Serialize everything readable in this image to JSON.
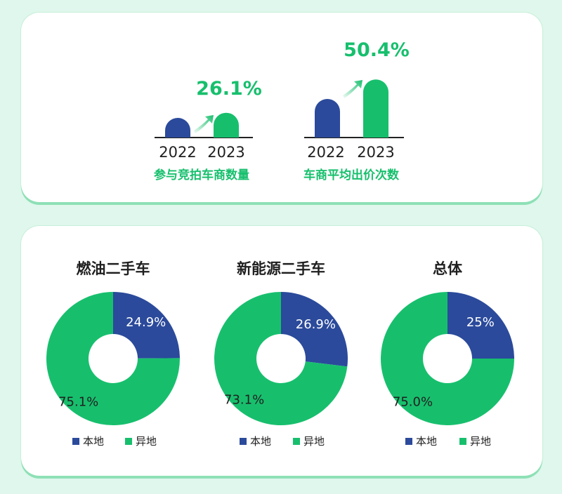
{
  "colors": {
    "local": "#2b4a9b",
    "remote": "#17bf6d",
    "axis": "#222222",
    "text": "#1f1f1f",
    "background": "#dff7ec"
  },
  "top_panel": {
    "left_chart": {
      "pct": "26.1%",
      "label": "参与竞拍车商数量",
      "years": [
        "2022",
        "2023"
      ]
    },
    "right_chart": {
      "pct": "50.4%",
      "label": "车商平均出价次数",
      "years": [
        "2022",
        "2023"
      ]
    }
  },
  "legend": {
    "local": "本地",
    "remote": "异地"
  },
  "chart_data": [
    {
      "type": "bar",
      "title": "参与竞拍车商数量",
      "categories": [
        "2022",
        "2023"
      ],
      "values": [
        1.0,
        1.261
      ],
      "annotation": "26.1%"
    },
    {
      "type": "bar",
      "title": "车商平均出价次数",
      "categories": [
        "2022",
        "2023"
      ],
      "values": [
        1.0,
        1.504
      ],
      "annotation": "50.4%"
    },
    {
      "type": "pie",
      "title": "燃油二手车",
      "labels": [
        "本地",
        "异地"
      ],
      "values": [
        24.9,
        75.1
      ],
      "value_labels": [
        "24.9%",
        "75.1%"
      ]
    },
    {
      "type": "pie",
      "title": "新能源二手车",
      "labels": [
        "本地",
        "异地"
      ],
      "values": [
        26.9,
        73.1
      ],
      "value_labels": [
        "26.9%",
        "73.1%"
      ]
    },
    {
      "type": "pie",
      "title": "总体",
      "labels": [
        "本地",
        "异地"
      ],
      "values": [
        25.0,
        75.0
      ],
      "value_labels": [
        "25%",
        "75.0%"
      ]
    }
  ]
}
